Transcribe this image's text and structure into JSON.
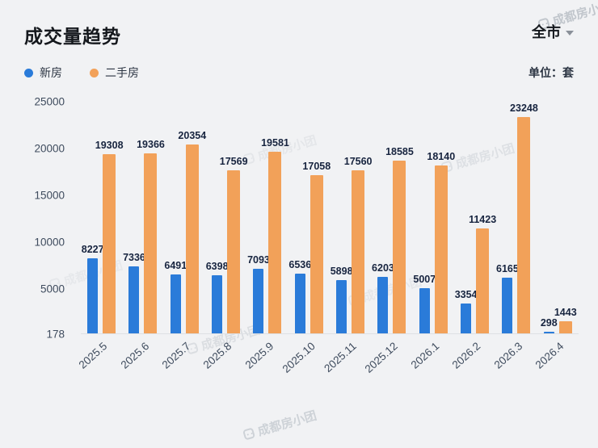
{
  "header": {
    "title": "成交量趋势",
    "region": "全市",
    "unit_label": "单位：套"
  },
  "legend": {
    "items": [
      {
        "label": "新房",
        "color": "#2a7bd9"
      },
      {
        "label": "二手房",
        "color": "#f2a159"
      }
    ]
  },
  "watermark": {
    "icon": "brand-logo-icon",
    "text": "成都房小团"
  },
  "chart_data": {
    "type": "bar",
    "title": "成交量趋势",
    "categories": [
      "2025.5",
      "2025.6",
      "2025.7",
      "2025.8",
      "2025.9",
      "2025.10",
      "2025.11",
      "2025.12",
      "2026.1",
      "2026.2",
      "2026.3",
      "2026.4"
    ],
    "series": [
      {
        "name": "新房",
        "color": "#2a7bd9",
        "values": [
          8227,
          7336,
          6491,
          6398,
          7093,
          6536,
          5898,
          6203,
          5007,
          3354,
          6165,
          298
        ]
      },
      {
        "name": "二手房",
        "color": "#f2a159",
        "values": [
          19308,
          19366,
          20354,
          17569,
          19581,
          17058,
          17560,
          18585,
          18140,
          11423,
          23248,
          1443
        ]
      }
    ],
    "xlabel": "",
    "ylabel": "",
    "ylim": [
      178,
      25000
    ],
    "yticks": [
      178,
      5000,
      10000,
      15000,
      20000,
      25000
    ],
    "grid": false,
    "legend_position": "top-left",
    "unit": "套"
  }
}
